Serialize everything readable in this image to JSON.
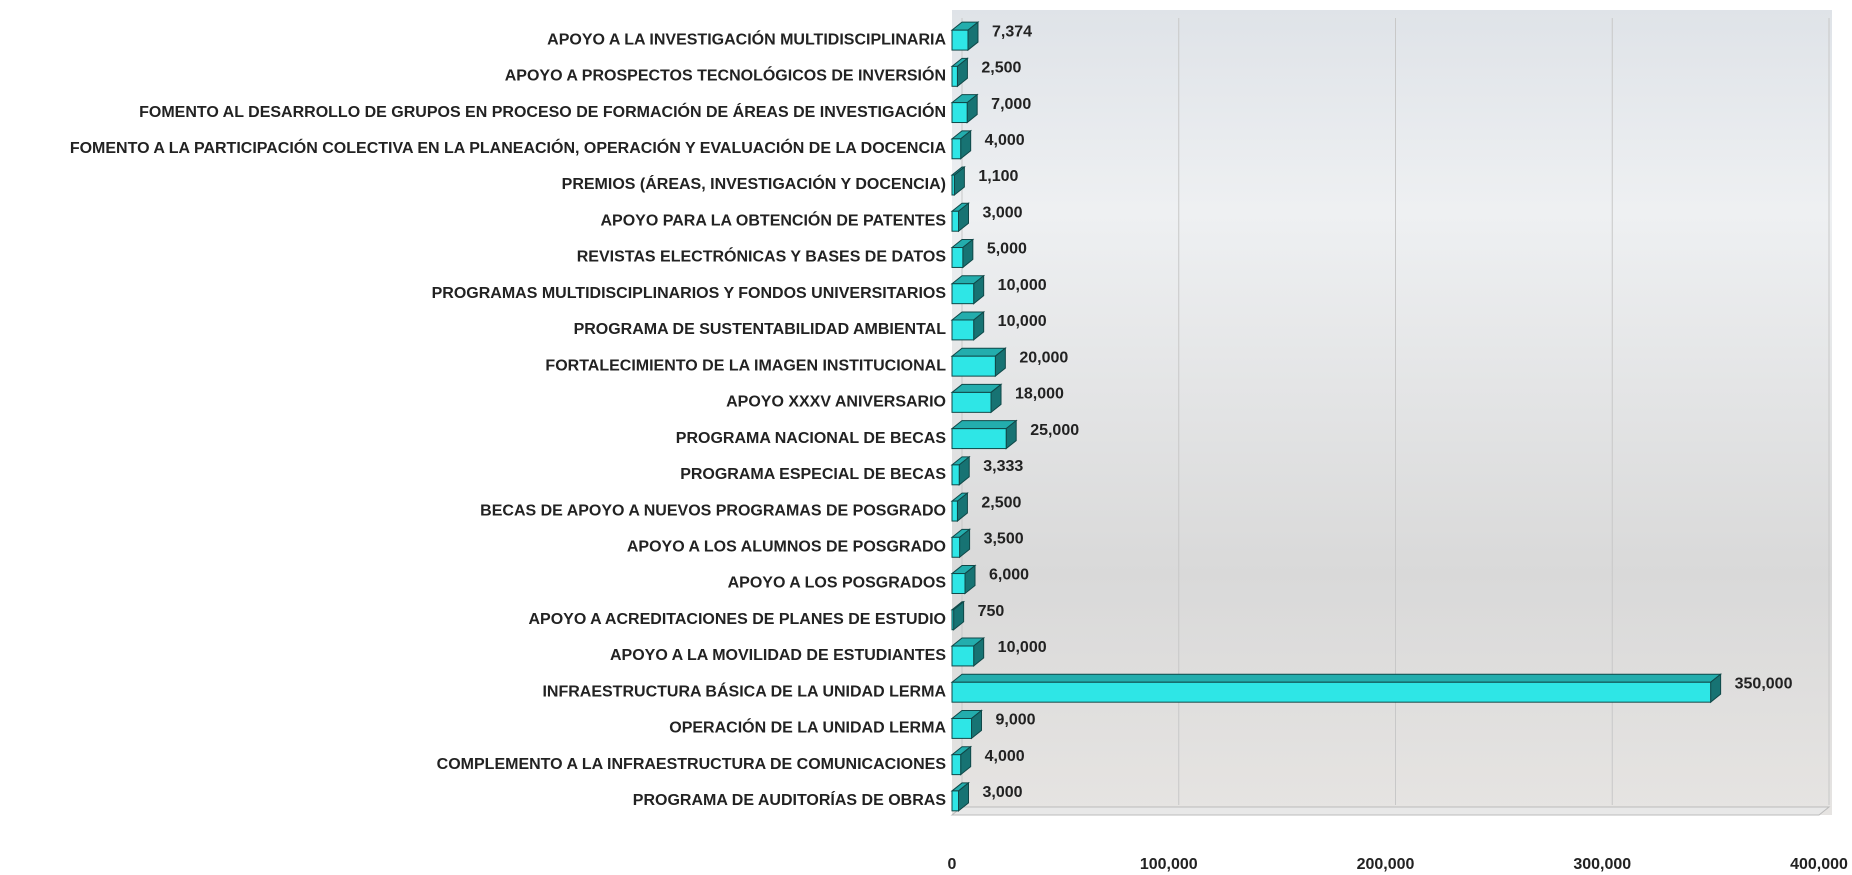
{
  "chart_data": {
    "type": "bar",
    "orientation": "horizontal",
    "categories": [
      "APOYO A LA INVESTIGACIÓN MULTIDISCIPLINARIA",
      "APOYO A PROSPECTOS TECNOLÓGICOS DE INVERSIÓN",
      "FOMENTO AL DESARROLLO DE GRUPOS EN PROCESO DE FORMACIÓN DE ÁREAS DE INVESTIGACIÓN",
      "FOMENTO A LA PARTICIPACIÓN COLECTIVA EN LA PLANEACIÓN, OPERACIÓN Y EVALUACIÓN DE LA DOCENCIA",
      "PREMIOS (ÁREAS, INVESTIGACIÓN Y DOCENCIA)",
      "APOYO PARA LA OBTENCIÓN DE PATENTES",
      "REVISTAS ELECTRÓNICAS Y BASES DE DATOS",
      "PROGRAMAS MULTIDISCIPLINARIOS Y FONDOS UNIVERSITARIOS",
      "PROGRAMA DE SUSTENTABILIDAD AMBIENTAL",
      "FORTALECIMIENTO DE LA IMAGEN INSTITUCIONAL",
      "APOYO XXXV ANIVERSARIO",
      "PROGRAMA NACIONAL DE BECAS",
      "PROGRAMA ESPECIAL DE BECAS",
      "BECAS DE APOYO A NUEVOS PROGRAMAS DE POSGRADO",
      "APOYO A LOS ALUMNOS DE POSGRADO",
      "APOYO A LOS POSGRADOS",
      "APOYO A ACREDITACIONES DE PLANES DE ESTUDIO",
      "APOYO A LA MOVILIDAD DE ESTUDIANTES",
      "INFRAESTRUCTURA BÁSICA DE LA UNIDAD LERMA",
      "OPERACIÓN DE LA UNIDAD LERMA",
      "COMPLEMENTO A LA INFRAESTRUCTURA DE COMUNICACIONES",
      "PROGRAMA DE AUDITORÍAS DE OBRAS"
    ],
    "values": [
      7374,
      2500,
      7000,
      4000,
      1100,
      3000,
      5000,
      10000,
      10000,
      20000,
      18000,
      25000,
      3333,
      2500,
      3500,
      6000,
      750,
      10000,
      350000,
      9000,
      4000,
      3000
    ],
    "value_labels": [
      "7,374",
      "2,500",
      "7,000",
      "4,000",
      "1,100",
      "3,000",
      "5,000",
      "10,000",
      "10,000",
      "20,000",
      "18,000",
      "25,000",
      "3,333",
      "2,500",
      "3,500",
      "6,000",
      "750",
      "10,000",
      "350,000",
      "9,000",
      "4,000",
      "3,000"
    ],
    "color": "#2ee6e6",
    "xlim": [
      0,
      400000
    ],
    "xticks": [
      0,
      {
        "value": 100000,
        "label": "100,000"
      },
      {
        "value": 200000,
        "label": "200,000"
      },
      {
        "value": 300000,
        "label": "300,000"
      },
      {
        "value": 400000,
        "label": "400,000"
      }
    ],
    "grid": true
  }
}
